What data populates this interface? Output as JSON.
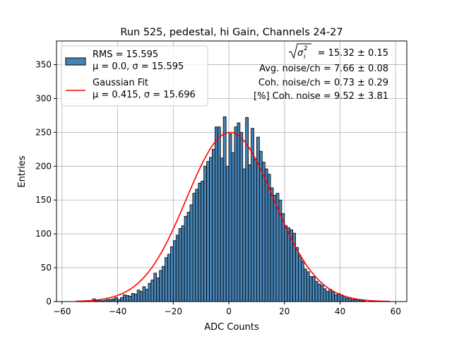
{
  "chart_data": {
    "type": "bar",
    "title": "Run 525, pedestal, hi Gain, Channels 24-27",
    "xlabel": "ADC Counts",
    "ylabel": "Entries",
    "xlim": [
      -62,
      64
    ],
    "ylim": [
      0,
      385
    ],
    "xticks": [
      -60,
      -40,
      -20,
      0,
      20,
      40,
      60
    ],
    "xtick_labels": [
      "−60",
      "−40",
      "−20",
      "0",
      "20",
      "40",
      "60"
    ],
    "yticks": [
      0,
      50,
      100,
      150,
      200,
      250,
      300,
      350
    ],
    "ytick_labels": [
      "0",
      "50",
      "100",
      "150",
      "200",
      "250",
      "300",
      "350"
    ],
    "grid": true,
    "legend_placement": "top-left",
    "bin_start": -55,
    "bin_width": 1,
    "series": [
      {
        "name": "RMS = 15.595\nμ = 0.0, σ = 15.595",
        "color": "#4682b4",
        "values": [
          0,
          0,
          0,
          0,
          1,
          0,
          4,
          1,
          2,
          1,
          2,
          3,
          3,
          4,
          6,
          3,
          6,
          10,
          9,
          8,
          12,
          11,
          17,
          15,
          22,
          18,
          27,
          32,
          42,
          35,
          46,
          52,
          65,
          70,
          81,
          90,
          98,
          108,
          112,
          126,
          132,
          143,
          160,
          166,
          175,
          178,
          200,
          207,
          213,
          225,
          258,
          258,
          212,
          273,
          200,
          248,
          220,
          258,
          264,
          250,
          196,
          272,
          202,
          256,
          210,
          243,
          222,
          206,
          196,
          188,
          168,
          157,
          160,
          150,
          130,
          112,
          109,
          106,
          101,
          80,
          68,
          60,
          48,
          44,
          37,
          37,
          30,
          26,
          24,
          19,
          15,
          18,
          14,
          10,
          12,
          10,
          8,
          5,
          6,
          3,
          3,
          3,
          2,
          1,
          0,
          0,
          0,
          0,
          0,
          0,
          0,
          0,
          0
        ]
      }
    ],
    "fit": {
      "name": "Gaussian Fit\nμ = 0.415, σ = 15.696",
      "color": "#ff0000",
      "mu": 0.415,
      "sigma": 15.696,
      "amplitude": 250,
      "range": [
        -55,
        58
      ]
    },
    "annotations": [
      "√σ_i² = 15.32 ± 0.15",
      "Avg. noise/ch = 7.66 ± 0.08",
      "Coh. noise/ch = 0.73 ± 0.29",
      "[%] Coh. noise = 9.52 ± 3.81"
    ],
    "legend": [
      {
        "line1": "RMS = 15.595",
        "line2": "μ = 0.0, σ = 15.595",
        "kind": "patch"
      },
      {
        "line1": "Gaussian Fit",
        "line2": "μ = 0.415, σ = 15.696",
        "kind": "line"
      }
    ]
  }
}
